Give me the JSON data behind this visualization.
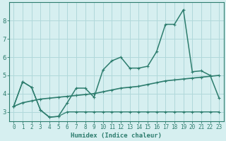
{
  "xlabel": "Humidex (Indice chaleur)",
  "background_color": "#d6eff0",
  "grid_color": "#b0d8da",
  "line_color": "#2d7d6e",
  "x_values": [
    0,
    1,
    2,
    3,
    4,
    5,
    6,
    7,
    8,
    9,
    10,
    11,
    12,
    13,
    14,
    15,
    16,
    17,
    18,
    19,
    20,
    21,
    22,
    23
  ],
  "line1_y": [
    3.3,
    4.65,
    4.35,
    3.1,
    2.7,
    2.75,
    3.5,
    4.3,
    4.3,
    3.8,
    5.3,
    5.8,
    6.0,
    5.4,
    5.4,
    5.5,
    6.3,
    7.8,
    7.8,
    8.6,
    5.2,
    5.25,
    5.0,
    3.75
  ],
  "line2_y": [
    3.3,
    3.5,
    3.6,
    3.7,
    3.75,
    3.8,
    3.85,
    3.9,
    3.95,
    4.0,
    4.1,
    4.2,
    4.3,
    4.35,
    4.4,
    4.5,
    4.6,
    4.7,
    4.75,
    4.8,
    4.85,
    4.9,
    4.95,
    5.0
  ],
  "line3_y": [
    3.3,
    4.65,
    4.35,
    3.1,
    2.72,
    2.75,
    3.0,
    3.0,
    3.0,
    3.0,
    3.0,
    3.0,
    3.0,
    3.0,
    3.0,
    3.0,
    3.0,
    3.0,
    3.0,
    3.0,
    3.0,
    3.0,
    3.0,
    3.0
  ],
  "xlim": [
    -0.5,
    23.5
  ],
  "ylim": [
    2.5,
    9.0
  ],
  "yticks": [
    3,
    4,
    5,
    6,
    7,
    8
  ],
  "xticks": [
    0,
    1,
    2,
    3,
    4,
    5,
    6,
    7,
    8,
    9,
    10,
    11,
    12,
    13,
    14,
    15,
    16,
    17,
    18,
    19,
    20,
    21,
    22,
    23
  ],
  "tick_fontsize": 5.5,
  "ytick_fontsize": 6.5,
  "xlabel_fontsize": 6.5
}
